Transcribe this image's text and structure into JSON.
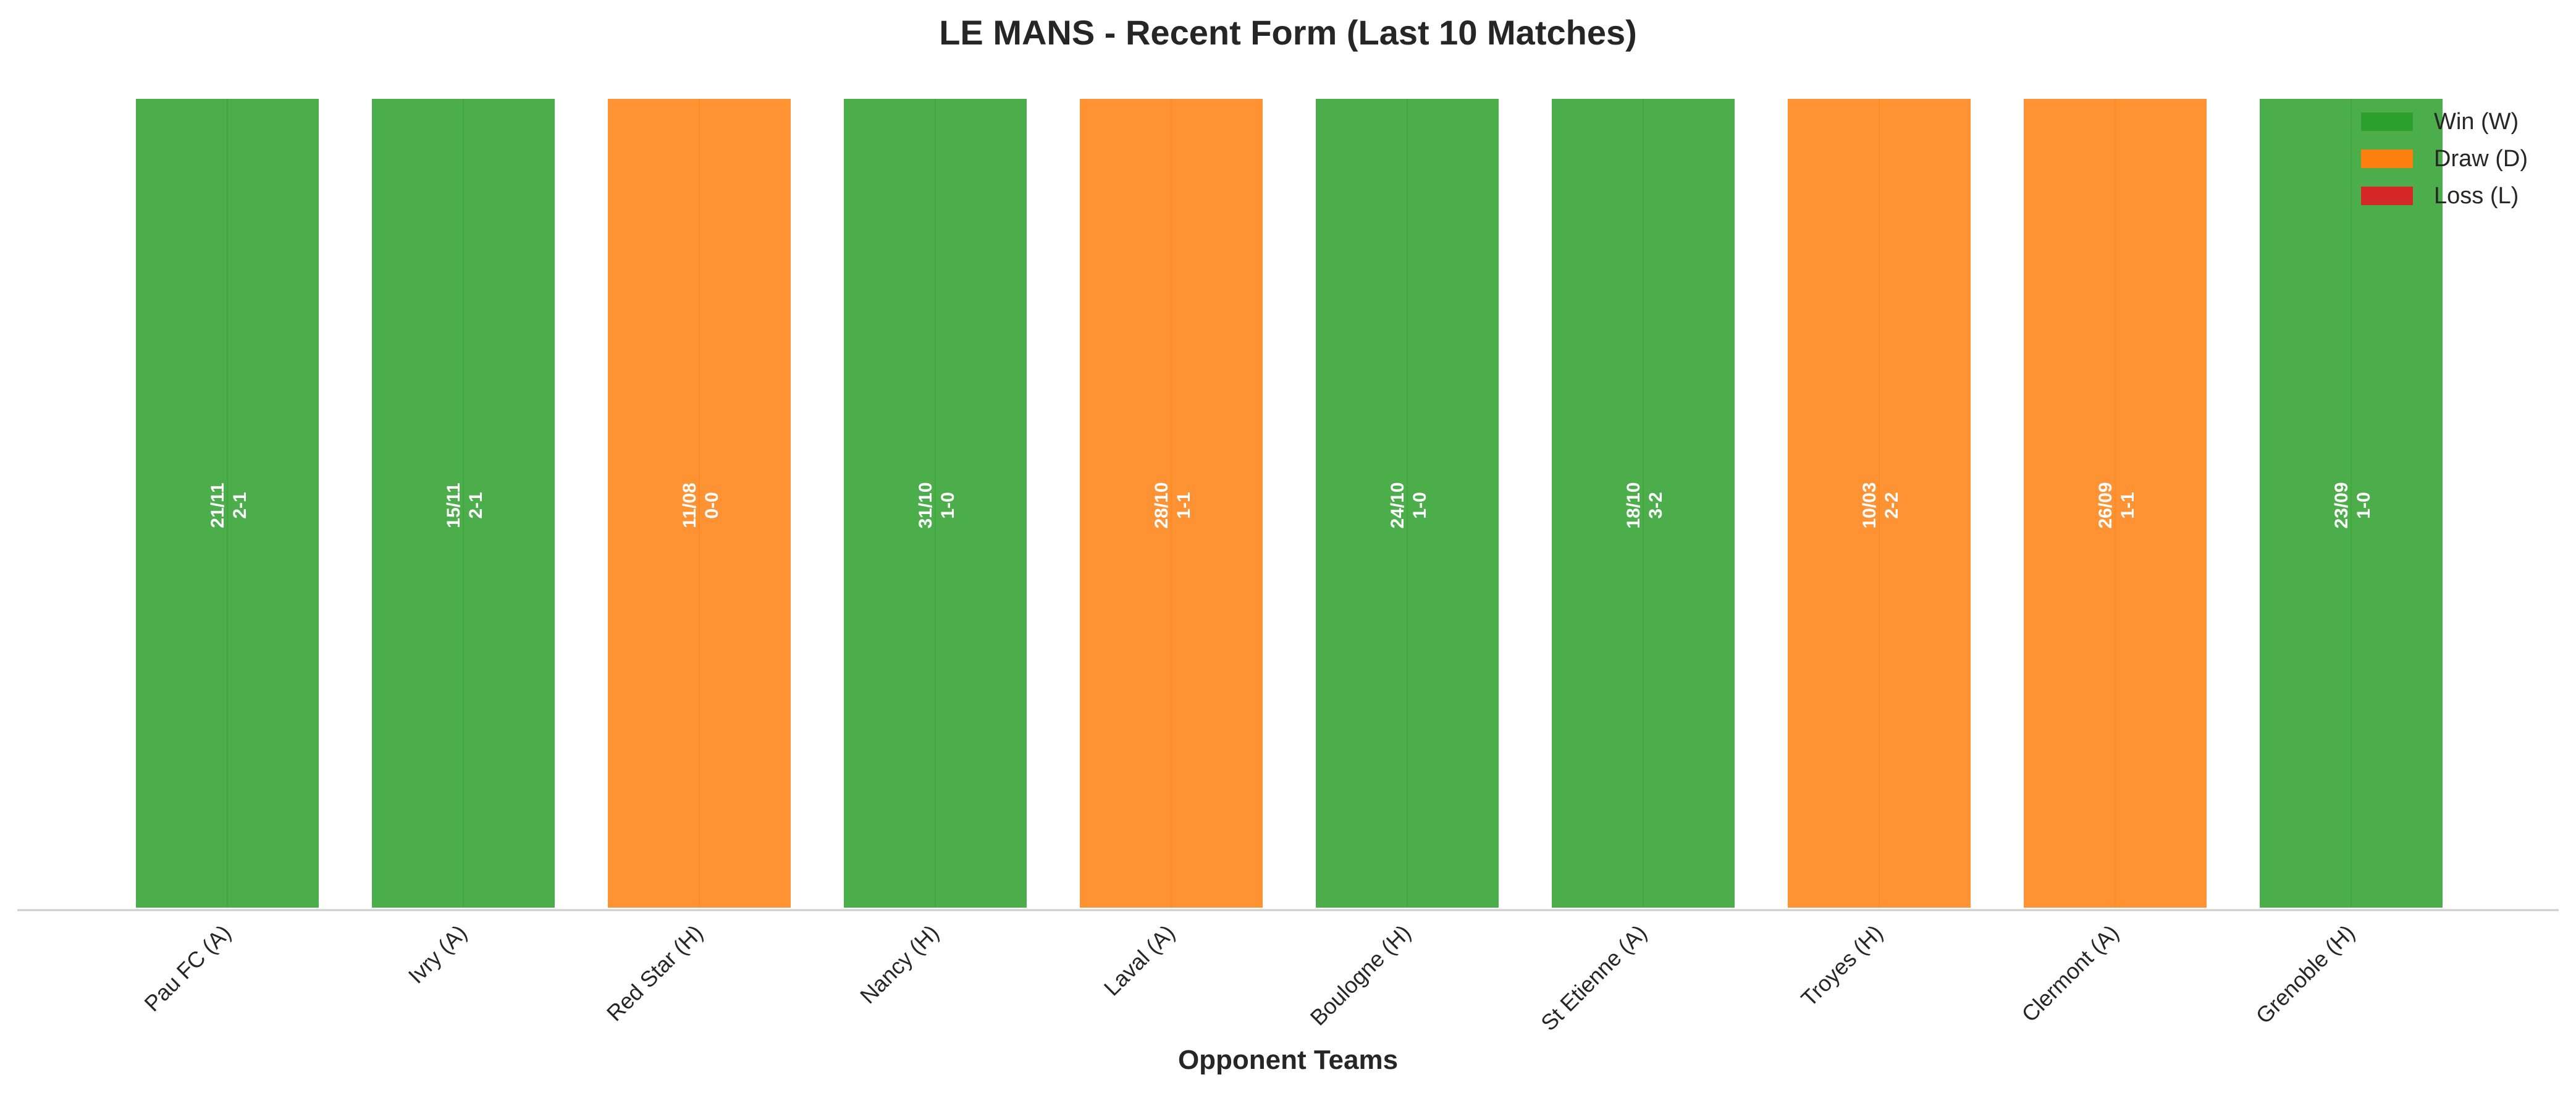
{
  "chart_data": {
    "type": "bar",
    "title": "LE MANS - Recent Form (Last 10 Matches)",
    "xlabel": "Opponent Teams",
    "ylabel": "",
    "ylim": [
      0,
      1
    ],
    "grid": false,
    "legend_position": "top-right",
    "colors": {
      "W": "#2ca02c",
      "D": "#ff7f0e",
      "L": "#d62728"
    },
    "legend": [
      {
        "key": "W",
        "label": "Win (W)"
      },
      {
        "key": "D",
        "label": "Draw (D)"
      },
      {
        "key": "L",
        "label": "Loss (L)"
      }
    ],
    "categories": [
      "Pau FC (A)",
      "Ivry (A)",
      "Red Star (H)",
      "Nancy (H)",
      "Laval (A)",
      "Boulogne (H)",
      "St Etienne (A)",
      "Troyes (H)",
      "Clermont (A)",
      "Grenoble (H)"
    ],
    "values": [
      1,
      1,
      1,
      1,
      1,
      1,
      1,
      1,
      1,
      1
    ],
    "results": [
      "W",
      "W",
      "D",
      "W",
      "D",
      "W",
      "W",
      "D",
      "D",
      "W"
    ],
    "dates": [
      "21/11",
      "15/11",
      "11/08",
      "31/10",
      "28/10",
      "24/10",
      "18/10",
      "10/03",
      "26/09",
      "23/09"
    ],
    "scores": [
      "2-1",
      "2-1",
      "0-0",
      "1-0",
      "1-1",
      "1-0",
      "3-2",
      "2-2",
      "1-1",
      "1-0"
    ]
  }
}
